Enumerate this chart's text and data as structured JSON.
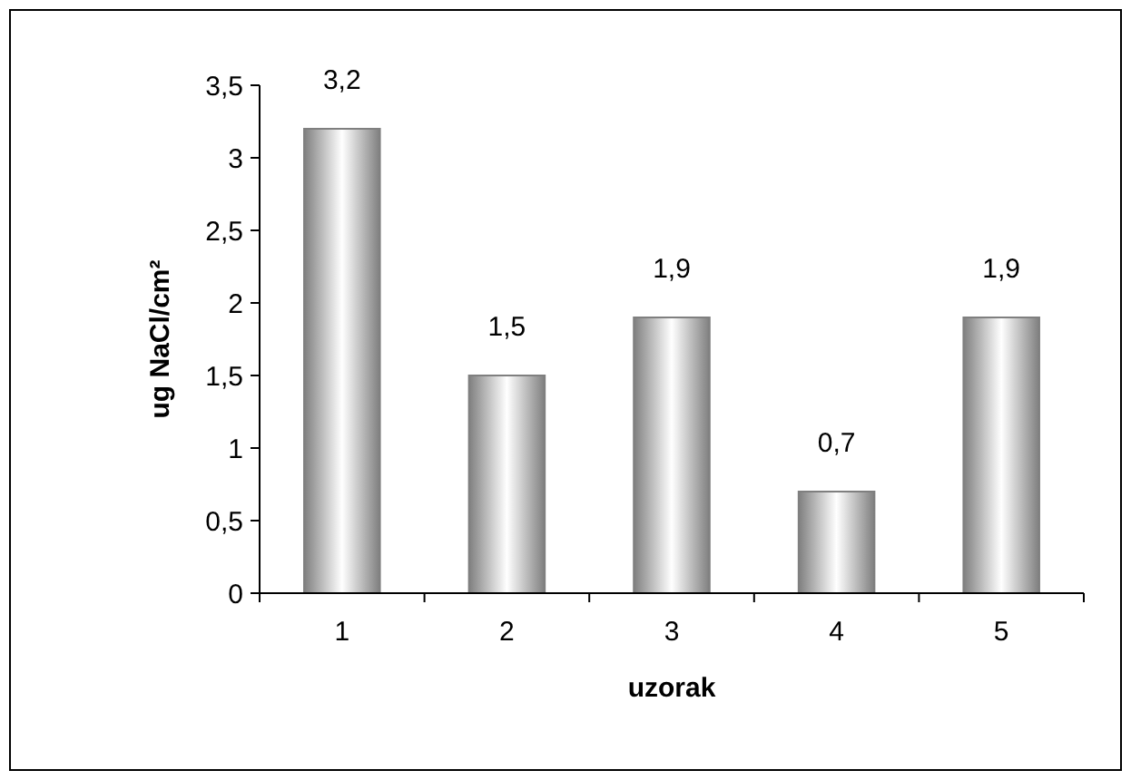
{
  "chart_data": {
    "type": "bar",
    "xlabel": "uzorak",
    "ylabel": "ug NaCl/cm²",
    "categories": [
      "1",
      "2",
      "3",
      "4",
      "5"
    ],
    "values": [
      3.2,
      1.5,
      1.9,
      0.7,
      1.9
    ],
    "value_labels": [
      "3,2",
      "1,5",
      "1,9",
      "0,7",
      "1,9"
    ],
    "color": "#7f7f7f",
    "ylim": [
      0,
      3.5
    ],
    "yticks": [
      0,
      {
        "value": 0.5,
        "label": "0,5"
      },
      1,
      {
        "value": 1.5,
        "label": "1,5"
      },
      2,
      {
        "value": 2.5,
        "label": "2,5"
      },
      3,
      {
        "value": 3.5,
        "label": "3,5"
      }
    ],
    "grid": false
  }
}
